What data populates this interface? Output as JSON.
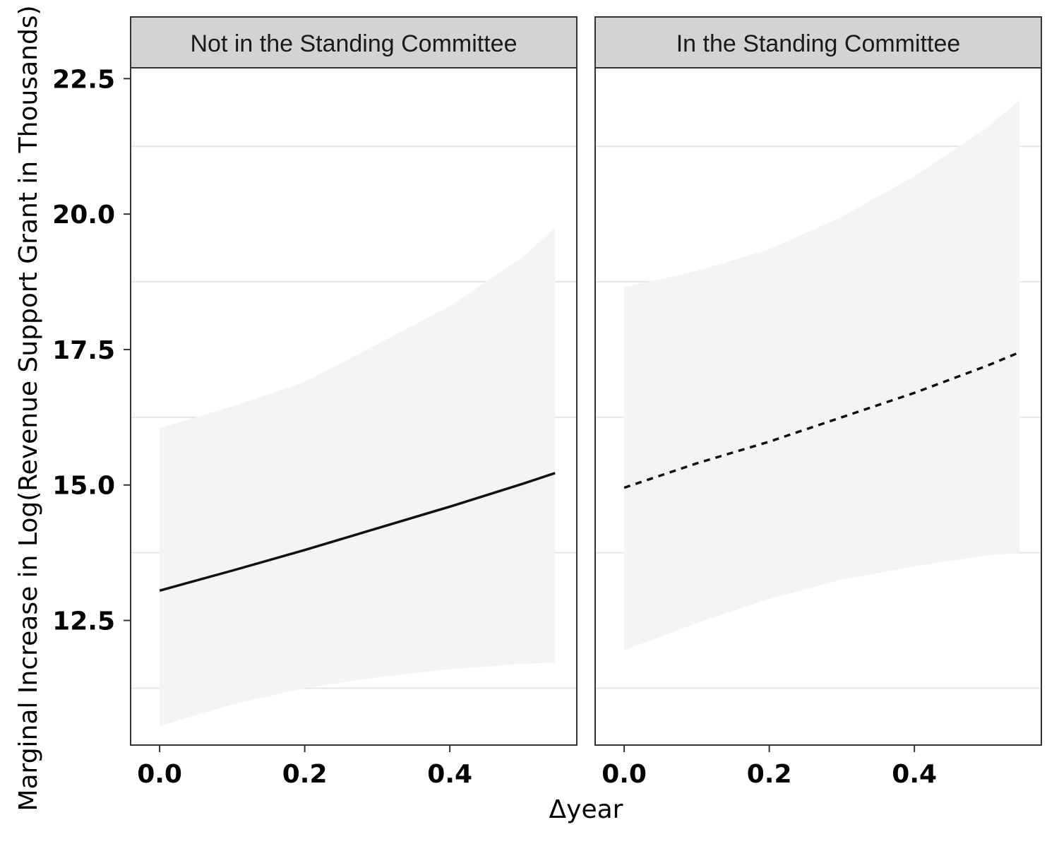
{
  "chart_data": {
    "type": "line",
    "xlabel": "Δyear",
    "ylabel": "Marginal Increase in Log(Revenue Support Grant in Thousands)",
    "xlim": [
      -0.04,
      0.575
    ],
    "ylim": [
      10.2,
      22.7
    ],
    "x_ticks": [
      "0.0",
      "0.2",
      "0.4"
    ],
    "y_ticks": [
      "12.5",
      "15.0",
      "17.5",
      "20.0",
      "22.5"
    ],
    "grid": "horizontal minor lines only",
    "colors": {
      "line": "#111111",
      "ribbon": "#f4f4f4",
      "strip_bg": "#d3d3d3",
      "grid": "#e6e6e6",
      "border": "#333333"
    },
    "panels": [
      {
        "label": "Not in the Standing Committee",
        "line_style": "solid",
        "x": [
          0.0,
          0.1,
          0.2,
          0.3,
          0.4,
          0.5,
          0.545
        ],
        "y": [
          13.05,
          13.42,
          13.8,
          14.2,
          14.6,
          15.02,
          15.22
        ],
        "ci_lower": [
          10.55,
          10.95,
          11.25,
          11.45,
          11.6,
          11.7,
          11.72
        ],
        "ci_upper": [
          16.05,
          16.45,
          16.9,
          17.6,
          18.3,
          19.2,
          19.75
        ]
      },
      {
        "label": "In the Standing Committee",
        "line_style": "dotted",
        "x": [
          0.0,
          0.1,
          0.2,
          0.3,
          0.4,
          0.5,
          0.545
        ],
        "y": [
          14.95,
          15.4,
          15.8,
          16.25,
          16.7,
          17.2,
          17.45
        ],
        "ci_lower": [
          11.95,
          12.45,
          12.9,
          13.25,
          13.5,
          13.7,
          13.75
        ],
        "ci_upper": [
          18.65,
          18.95,
          19.35,
          19.95,
          20.7,
          21.6,
          22.1
        ]
      }
    ]
  }
}
